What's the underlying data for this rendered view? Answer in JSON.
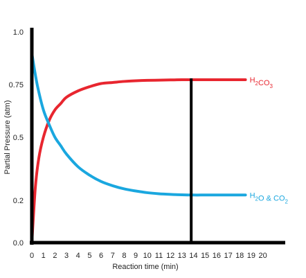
{
  "chart_data": {
    "type": "line",
    "title": "",
    "xlabel": "Reaction time (min)",
    "ylabel": "Partial Pressure (atm)",
    "xlim": [
      0,
      20
    ],
    "ylim": [
      0,
      1.0
    ],
    "x_ticks": [
      0,
      1,
      2,
      3,
      4,
      5,
      6,
      7,
      8,
      9,
      10,
      11,
      12,
      13,
      14,
      15,
      16,
      17,
      18,
      19,
      20
    ],
    "y_ticks": [
      {
        "value": 0.0,
        "label": "0.0"
      },
      {
        "value": 0.2,
        "label": "0.2"
      },
      {
        "value": 0.5,
        "label": "0.5"
      },
      {
        "value": 0.75,
        "label": "0.75"
      },
      {
        "value": 1.0,
        "label": "1.0"
      }
    ],
    "series": [
      {
        "name_parts": {
          "base": [
            "H",
            "CO"
          ],
          "subs": [
            "2",
            "3"
          ]
        },
        "color": "#e8262f",
        "x": [
          0,
          0.3,
          0.6,
          1,
          1.5,
          2,
          2.5,
          3,
          4,
          5,
          6,
          7,
          8,
          9,
          10,
          11,
          12,
          13,
          14,
          15,
          16,
          17,
          18.5
        ],
        "y": [
          0.0,
          0.26,
          0.4,
          0.5,
          0.58,
          0.63,
          0.66,
          0.69,
          0.72,
          0.74,
          0.755,
          0.76,
          0.765,
          0.768,
          0.77,
          0.771,
          0.772,
          0.773,
          0.773,
          0.773,
          0.773,
          0.773,
          0.773
        ]
      },
      {
        "name_parts": {
          "base": [
            "H",
            "O & CO"
          ],
          "subs": [
            "2",
            "2"
          ]
        },
        "color": "#1aa7df",
        "x": [
          0,
          0.2,
          0.5,
          1,
          1.5,
          2,
          2.5,
          3,
          4,
          5,
          6,
          7,
          8,
          9,
          10,
          11,
          12,
          13,
          14,
          15,
          16,
          17,
          18.5
        ],
        "y": [
          0.9,
          0.83,
          0.74,
          0.63,
          0.56,
          0.5,
          0.46,
          0.42,
          0.36,
          0.32,
          0.29,
          0.27,
          0.255,
          0.245,
          0.237,
          0.232,
          0.229,
          0.227,
          0.226,
          0.226,
          0.226,
          0.226,
          0.226
        ]
      }
    ],
    "vertical_marker": {
      "x": 13.8,
      "y_top": 0.773,
      "color": "#000000"
    },
    "grid": false,
    "legend": "inline-labels-right"
  }
}
